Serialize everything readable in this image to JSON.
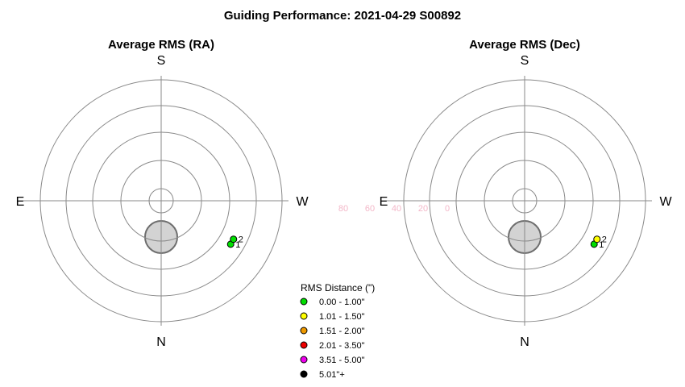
{
  "figure": {
    "title": "Guiding Performance: 2021-04-29 S00892"
  },
  "chart_data": [
    {
      "type": "scatter",
      "projection": "polar",
      "title": "Average RMS (RA)",
      "compass": {
        "top": "S",
        "bottom": "N",
        "left": "E",
        "right": "W"
      },
      "radial_ticks": [
        "80",
        "60",
        "40",
        "20",
        "0"
      ],
      "altitude_rings": [
        80,
        60,
        40,
        20,
        0
      ],
      "grid": true,
      "horizon_limit": {
        "azimuth_deg": 180,
        "altitude_deg": 63,
        "radius_deg": 12,
        "color": "#d3d3d3"
      },
      "points": [
        {
          "label": "1",
          "azimuth_deg": 238,
          "altitude_deg": 29,
          "rms_arcsec": 0.8,
          "color": "#00dd00"
        },
        {
          "label": "2",
          "azimuth_deg": 242,
          "altitude_deg": 29,
          "rms_arcsec": 0.8,
          "color": "#00dd00"
        }
      ]
    },
    {
      "type": "scatter",
      "projection": "polar",
      "title": "Average RMS (Dec)",
      "compass": {
        "top": "S",
        "bottom": "N",
        "left": "E",
        "right": "W"
      },
      "radial_ticks": [
        "80",
        "60",
        "40",
        "20",
        "0"
      ],
      "altitude_rings": [
        80,
        60,
        40,
        20,
        0
      ],
      "grid": true,
      "horizon_limit": {
        "azimuth_deg": 180,
        "altitude_deg": 63,
        "radius_deg": 12,
        "color": "#d3d3d3"
      },
      "points": [
        {
          "label": "1",
          "azimuth_deg": 238,
          "altitude_deg": 29,
          "rms_arcsec": 0.8,
          "color": "#00dd00"
        },
        {
          "label": "2",
          "azimuth_deg": 242,
          "altitude_deg": 29,
          "rms_arcsec": 1.2,
          "color": "#ffff00"
        }
      ]
    }
  ],
  "legend": {
    "title": "RMS Distance (\")",
    "placement": "bottom-center",
    "items": [
      {
        "label": "0.00 - 1.00\"",
        "color": "#00dd00"
      },
      {
        "label": "1.01 - 1.50\"",
        "color": "#ffff00"
      },
      {
        "label": "1.51 - 2.00\"",
        "color": "#ee9900"
      },
      {
        "label": "2.01 - 3.50\"",
        "color": "#ee0000"
      },
      {
        "label": "3.51 - 5.00\"",
        "color": "#ee00ee"
      },
      {
        "label": "5.01\"+",
        "color": "#000000"
      }
    ]
  }
}
